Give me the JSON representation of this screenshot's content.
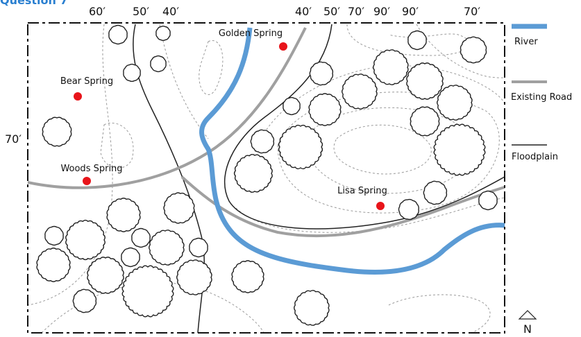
{
  "title": "Question 7",
  "contour_labels": [
    "60′",
    "50′",
    "40′",
    "40′",
    "50′",
    "70′",
    "90′",
    "90′",
    "70′",
    "70′"
  ],
  "springs": [
    "Bear Spring",
    "Golden Spring",
    "Woods Spring",
    "Lisa Spring"
  ],
  "legend": [
    "River",
    "Existing Road",
    "Floodplain"
  ],
  "north": "N"
}
